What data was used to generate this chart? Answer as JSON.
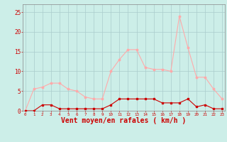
{
  "x": [
    0,
    1,
    2,
    3,
    4,
    5,
    6,
    7,
    8,
    9,
    10,
    11,
    12,
    13,
    14,
    15,
    16,
    17,
    18,
    19,
    20,
    21,
    22,
    23
  ],
  "wind_avg": [
    0,
    0,
    1.5,
    1.5,
    0.5,
    0.5,
    0.5,
    0.5,
    0.5,
    0.5,
    1.5,
    3,
    3,
    3,
    3,
    3,
    2,
    2,
    2,
    3,
    1,
    1.5,
    0.5,
    0.5
  ],
  "wind_gust": [
    0,
    5.5,
    6,
    7,
    7,
    5.5,
    5,
    3.5,
    3,
    3,
    10,
    13,
    15.5,
    15.5,
    11,
    10.5,
    10.5,
    10,
    24,
    16,
    8.5,
    8.5,
    5.5,
    3
  ],
  "wind_avg_color": "#cc0000",
  "wind_gust_color": "#ffaaaa",
  "bg_color": "#cceee8",
  "grid_color": "#aacccc",
  "xlabel": "Vent moyen/en rafales ( km/h )",
  "xlabel_color": "#cc0000",
  "xlabel_fontsize": 7,
  "ytick_labels": [
    "0",
    "5",
    "10",
    "15",
    "20",
    "25"
  ],
  "ytick_vals": [
    0,
    5,
    10,
    15,
    20,
    25
  ],
  "xlim": [
    -0.3,
    23.3
  ],
  "ylim": [
    0,
    27
  ]
}
